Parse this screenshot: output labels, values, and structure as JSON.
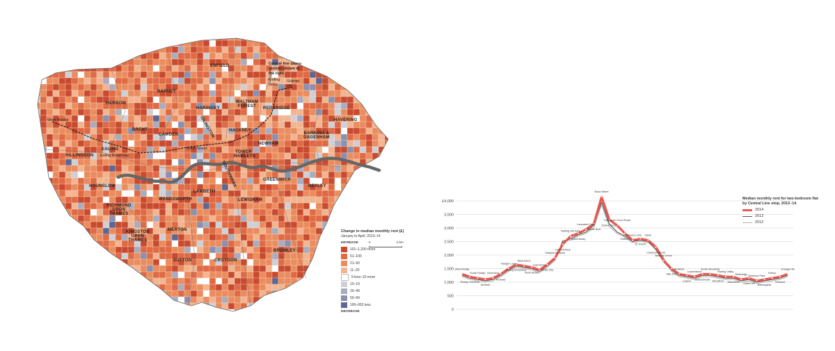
{
  "map": {
    "boroughs": {
      "enfield": "ENFIELD",
      "barnet": "BARNET",
      "harrow": "HARROW",
      "haringey": "HARINGEY",
      "waltham_forest": "WALTHAM FOREST",
      "redbridge": "REDBRIDGE",
      "havering": "HAVERING",
      "brent": "BRENT",
      "camden": "CAMDEN",
      "islington": "ISLINGTON",
      "hackney": "HACKNEY",
      "newham": "NEWHAM",
      "barking": "BARKING & DAGENHAM",
      "ealing": "EALING",
      "hillingdon": "HILLINGDON",
      "tower_hamlets": "TOWER HAMLETS",
      "hounslow": "HOUNSLOW",
      "greenwich": "GREENWICH",
      "bexley": "BEXLEY",
      "lambeth": "LAMBETH",
      "southwark": "SOUTHWARK",
      "richmond": "RICHMOND UPON THAMES",
      "wandsworth": "WANDSWORTH",
      "lewisham": "LEWISHAM",
      "kingston": "KINGSTON UPON THAMES",
      "merton": "MERTON",
      "sutton": "SUTTON",
      "croydon": "CROYDON",
      "bromley": "BROMLEY"
    },
    "callouts": {
      "central_line": "Central line cross-section shown to the right",
      "roding_valley": "Roding Valley",
      "grange_hill": "Grange Hill",
      "west_ruislip": "West Ruislip",
      "ealing_broadway": "Ealing Broadway",
      "bond_street": "Bond Street"
    },
    "scale_label": "5 km",
    "scale_zero": "0",
    "legend": {
      "title": "Change in median monthly rent (£)",
      "subtitle": "January to April, 2013–14",
      "increase_label": "INCREASE",
      "decrease_label": "DECREASE",
      "classes": [
        {
          "label": "101–1,200 more",
          "color": "#c94a2e"
        },
        {
          "label": "51–100",
          "color": "#e06a43"
        },
        {
          "label": "21–50",
          "color": "#eb8c5e"
        },
        {
          "label": "11–20",
          "color": "#f3b490"
        },
        {
          "label": "9 less–10 more",
          "color": "#ffffff"
        },
        {
          "label": "10–19",
          "color": "#cfcfd6"
        },
        {
          "label": "20–49",
          "color": "#a9acbf"
        },
        {
          "label": "50–99",
          "color": "#8a90ae"
        },
        {
          "label": "100–653 less",
          "color": "#5c6794"
        }
      ]
    }
  },
  "chart_data": {
    "type": "line",
    "title": "Median monthly rent for two-bedroom flat by Central Line stop, 2012–14",
    "xlabel": "",
    "ylabel": "",
    "ylim": [
      0,
      4000
    ],
    "yticks": [
      "0",
      "500",
      "1,000",
      "1,500",
      "2,000",
      "2,500",
      "3,000",
      "3,500",
      "£4,000"
    ],
    "grid": true,
    "legend_position": "top-right",
    "categories": [
      "West Ruislip",
      "Ruislip Gardens",
      "South Ruislip",
      "Northolt",
      "Greenford",
      "Perivale",
      "Hanger Lane",
      "Ealing Broadway",
      "West Acton",
      "North Acton",
      "East Acton",
      "White City",
      "Shepherd's Bush",
      "Holland Park",
      "Notting Hill Gate",
      "Queensway",
      "Lancaster Gate",
      "Marble Arch",
      "Bond Street",
      "Oxford Circus",
      "Tottenham Court Road",
      "Holborn",
      "Chancery Lane",
      "St. Paul's",
      "Bank",
      "Liverpool Street",
      "Bethnal Green",
      "Mile End",
      "Stratford",
      "Leyton",
      "Leytonstone",
      "Snaresbrook",
      "South Woodford",
      "Woodford",
      "Roding Valley",
      "Wanstead",
      "Redbridge",
      "Gants Hill",
      "Newbury Park",
      "Barkingside",
      "Fairlop",
      "Hainault",
      "Grange Hill"
    ],
    "series": [
      {
        "name": "2014",
        "color": "#e8584f",
        "values": [
          1300,
          1200,
          1150,
          1100,
          1150,
          1300,
          1500,
          1650,
          1600,
          1550,
          1450,
          1650,
          1900,
          2400,
          2700,
          2800,
          2950,
          3150,
          4150,
          3300,
          3100,
          2800,
          2550,
          2600,
          2550,
          2300,
          1800,
          1500,
          1300,
          1250,
          1200,
          1300,
          1300,
          1250,
          1200,
          1200,
          1100,
          1150,
          1050,
          1100,
          1150,
          1200,
          1300
        ]
      },
      {
        "name": "2013",
        "color": "#555555",
        "values": [
          1250,
          1150,
          1100,
          1050,
          1100,
          1250,
          1450,
          1600,
          1550,
          1500,
          1400,
          1600,
          1850,
          2500,
          2600,
          2750,
          2850,
          3100,
          3950,
          3150,
          2850,
          2700,
          2500,
          2550,
          2500,
          2200,
          1750,
          1450,
          1250,
          1200,
          1150,
          1250,
          1250,
          1200,
          1150,
          1150,
          1050,
          1100,
          1000,
          1050,
          1100,
          1150,
          1250
        ]
      },
      {
        "name": "2012",
        "color": "#b5b5b5",
        "values": [
          1200,
          1100,
          1050,
          1000,
          1050,
          1200,
          1400,
          1550,
          1500,
          1450,
          1350,
          1550,
          1800,
          2550,
          2550,
          2700,
          2800,
          3000,
          3850,
          3050,
          2800,
          2650,
          2450,
          2500,
          2450,
          2300,
          1900,
          1400,
          1200,
          1150,
          1100,
          1200,
          1200,
          1150,
          1100,
          1100,
          1000,
          1050,
          950,
          1000,
          1050,
          1100,
          1200
        ]
      }
    ]
  }
}
